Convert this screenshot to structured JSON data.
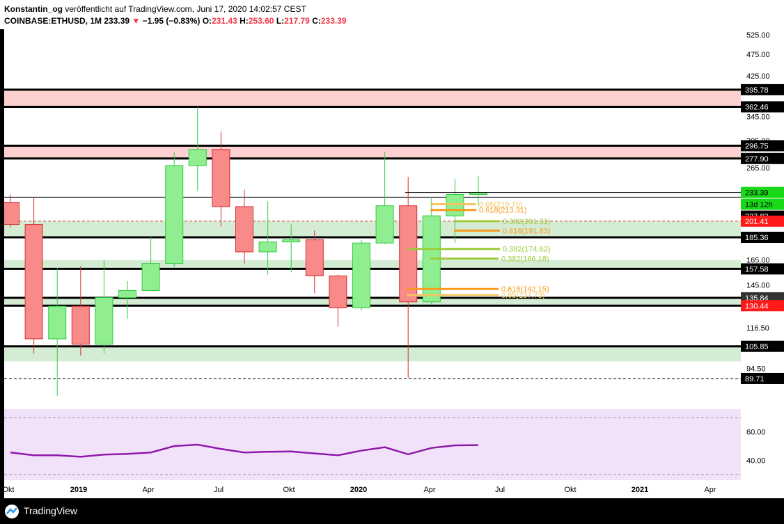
{
  "header": {
    "author": "Konstantin_og",
    "published_text": "veröffentlicht auf TradingView.com, Juni 17, 2020 14:02:57 CEST",
    "symbol": "COINBASE:ETHUSD, 1M",
    "last": "233.39",
    "change_arrow": "▼",
    "change": "−1.95 (−0.83%)",
    "o_label": "O:",
    "o_value": "231.43",
    "h_label": "H:",
    "h_value": "253.60",
    "l_label": "L:",
    "l_value": "217.79",
    "c_label": "C:",
    "c_value": "233.39"
  },
  "footer": {
    "brand": "TradingView"
  },
  "colors": {
    "up": "#90ee90",
    "up_border": "#2ecc40",
    "down": "#f88a8a",
    "down_border": "#d32f2f",
    "resistance_zone": "#fdd0d0",
    "support_zone": "#d4ecd4",
    "rsi_bg": "#f1e2fa",
    "rsi_line": "#8e1aa8",
    "fib_orange": "#f79a1e",
    "fib_yellow": "#f3c462",
    "fib_green": "#9ccc3a"
  },
  "chart_data": [
    {
      "type": "candlestick",
      "title": "COINBASE:ETHUSD, 1M",
      "x_ticks": [
        "Okt",
        "2019",
        "Apr",
        "Jul",
        "Okt",
        "2020",
        "Apr",
        "Jul",
        "Okt",
        "2021",
        "Apr"
      ],
      "y_ticks": [
        "525.00",
        "475.00",
        "425.00",
        "345.00",
        "305.00",
        "265.00",
        "165.00",
        "145.00",
        "116.50",
        "94.50"
      ],
      "ylim": [
        80,
        540
      ],
      "y_scale": "log",
      "candles": [
        {
          "t": "2018-10",
          "o": 222,
          "h": 231,
          "l": 195,
          "c": 198
        },
        {
          "t": "2018-11",
          "o": 198,
          "h": 227,
          "l": 102,
          "c": 110
        },
        {
          "t": "2018-12",
          "o": 110,
          "h": 158,
          "l": 82,
          "c": 130
        },
        {
          "t": "2019-01",
          "o": 130,
          "h": 160,
          "l": 101,
          "c": 107
        },
        {
          "t": "2019-02",
          "o": 107,
          "h": 165,
          "l": 102,
          "c": 136
        },
        {
          "t": "2019-03",
          "o": 136,
          "h": 148,
          "l": 122,
          "c": 141
        },
        {
          "t": "2019-04",
          "o": 141,
          "h": 186,
          "l": 141,
          "c": 162
        },
        {
          "t": "2019-05",
          "o": 162,
          "h": 287,
          "l": 159,
          "c": 268
        },
        {
          "t": "2019-06",
          "o": 268,
          "h": 362,
          "l": 235,
          "c": 291
        },
        {
          "t": "2019-07",
          "o": 291,
          "h": 319,
          "l": 196,
          "c": 217
        },
        {
          "t": "2019-08",
          "o": 217,
          "h": 237,
          "l": 162,
          "c": 172
        },
        {
          "t": "2019-09",
          "o": 172,
          "h": 223,
          "l": 153,
          "c": 181
        },
        {
          "t": "2019-10",
          "o": 181,
          "h": 198,
          "l": 155,
          "c": 183
        },
        {
          "t": "2019-11",
          "o": 183,
          "h": 192,
          "l": 139,
          "c": 152
        },
        {
          "t": "2019-12",
          "o": 152,
          "h": 153,
          "l": 117,
          "c": 129
        },
        {
          "t": "2020-01",
          "o": 129,
          "h": 183,
          "l": 127,
          "c": 180
        },
        {
          "t": "2020-02",
          "o": 180,
          "h": 288,
          "l": 179,
          "c": 218
        },
        {
          "t": "2020-03",
          "o": 218,
          "h": 253,
          "l": 90,
          "c": 133
        },
        {
          "t": "2020-04",
          "o": 133,
          "h": 228,
          "l": 131,
          "c": 207
        },
        {
          "t": "2020-05",
          "o": 207,
          "h": 250,
          "l": 180,
          "c": 231
        },
        {
          "t": "2020-06",
          "o": 231,
          "h": 253.6,
          "l": 217.79,
          "c": 233.39
        }
      ],
      "price_labels": [
        {
          "text": "395.78",
          "style": "black"
        },
        {
          "text": "362.46",
          "style": "black"
        },
        {
          "text": "296.75",
          "style": "black"
        },
        {
          "text": "277.90",
          "style": "black"
        },
        {
          "text": "233.39",
          "style": "green"
        },
        {
          "text": "13d 12h",
          "style": "green"
        },
        {
          "text": "227.83",
          "style": "black"
        },
        {
          "text": "201.41",
          "style": "red"
        },
        {
          "text": "185.36",
          "style": "black"
        },
        {
          "text": "157.58",
          "style": "black"
        },
        {
          "text": "135.84",
          "style": "gray"
        },
        {
          "text": "130.44",
          "style": "red"
        },
        {
          "text": "105.85",
          "style": "black"
        },
        {
          "text": "89.71",
          "style": "black"
        }
      ],
      "horizontal_levels": [
        395.78,
        362.46,
        296.75,
        277.9,
        227.83,
        201.41,
        185.36,
        157.58,
        135.84,
        130.44,
        105.85,
        89.71
      ],
      "resistance_zones": [
        [
          362.46,
          395.78
        ],
        [
          277.9,
          296.75
        ]
      ],
      "support_zones": [
        [
          185.36,
          201.41
        ],
        [
          157.58,
          165
        ],
        [
          130.44,
          135.84
        ],
        [
          98,
          105.85
        ]
      ],
      "fib_annotations": [
        {
          "text": "0.65(219.70)",
          "value": 219.7,
          "color": "yellow"
        },
        {
          "text": "0.618(213.31)",
          "value": 213.31,
          "color": "orange"
        },
        {
          "text": "0.382(201.31)",
          "value": 201.31,
          "color": "green"
        },
        {
          "text": "0.618(191.83)",
          "value": 191.83,
          "color": "orange"
        },
        {
          "text": "0.382(174.62)",
          "value": 174.62,
          "color": "green"
        },
        {
          "text": "0.382(166.18)",
          "value": 166.18,
          "color": "green"
        },
        {
          "text": "0.618(142.15)",
          "value": 142.15,
          "color": "orange"
        },
        {
          "text": "0.65(137.73)",
          "value": 137.73,
          "color": "yellow"
        }
      ]
    },
    {
      "type": "line",
      "title": "RSI",
      "y_ticks": [
        "60.00",
        "40.00"
      ],
      "ylim": [
        26,
        76
      ],
      "values": [
        45.5,
        43.5,
        43.5,
        42.5,
        44,
        44.5,
        45.5,
        50,
        51,
        48,
        45.5,
        46,
        46.2,
        44.8,
        43.5,
        46.8,
        49.2,
        44.2,
        48.7,
        50.5,
        50.7
      ]
    }
  ]
}
